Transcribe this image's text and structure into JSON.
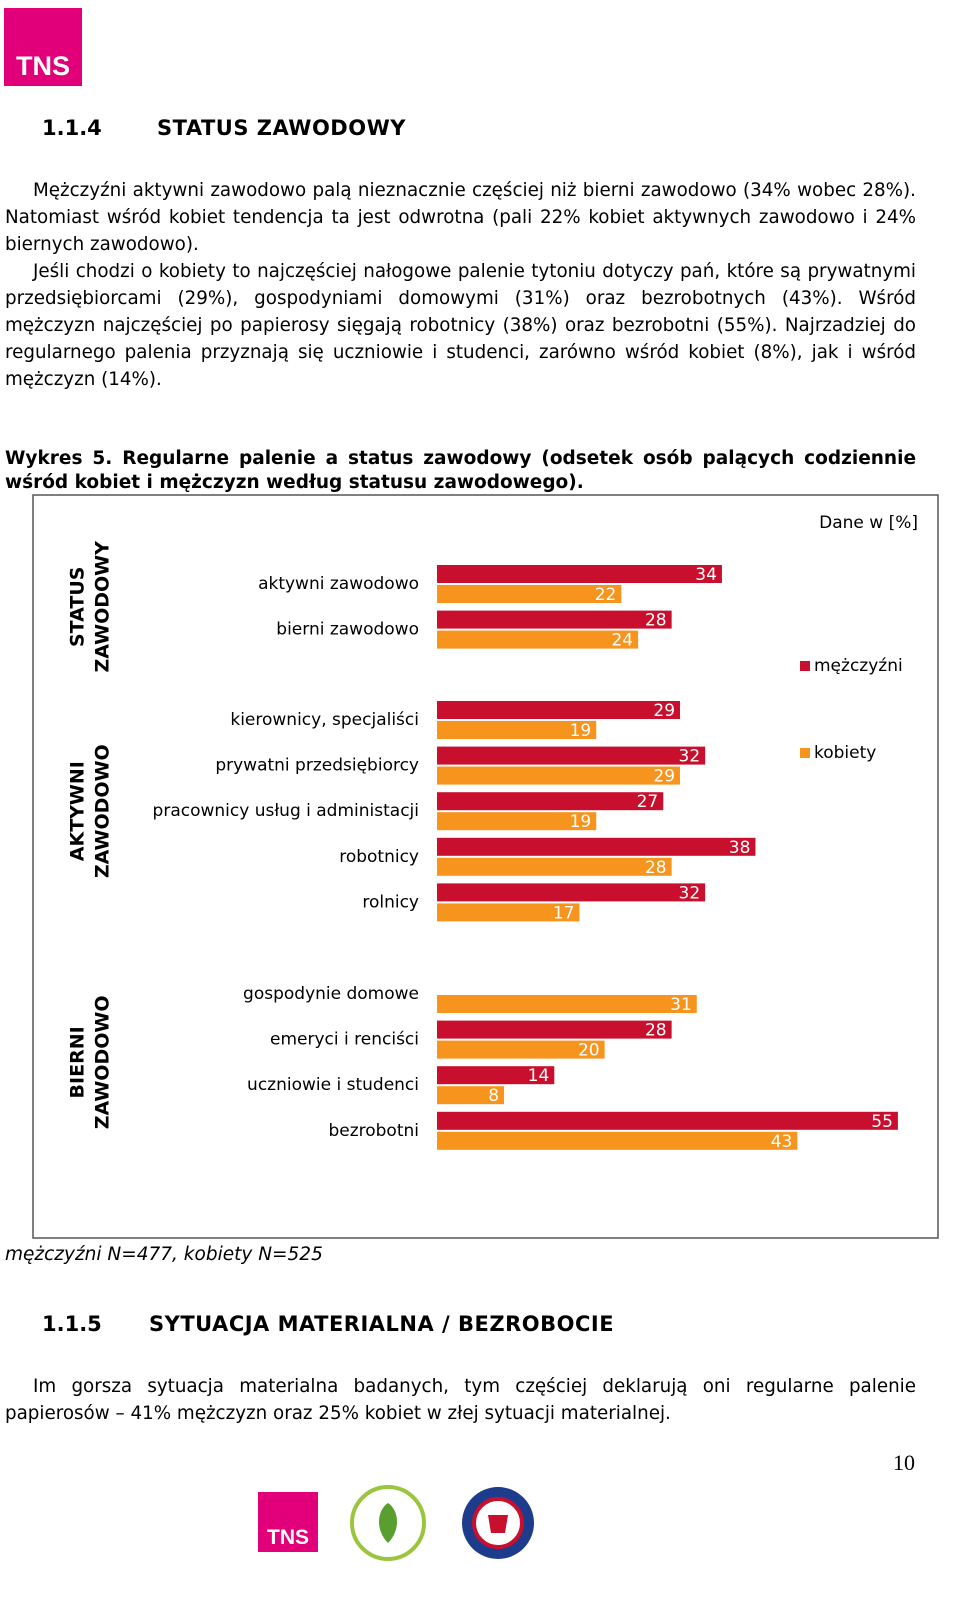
{
  "logo": "TNS",
  "section1": {
    "number": "1.1.4",
    "title": "STATUS ZAWODOWY",
    "paragraphs": [
      "Mężczyźni aktywni zawodowo palą nieznacznie częściej niż bierni zawodowo (34% wobec 28%). Natomiast wśród kobiet tendencja ta jest odwrotna (pali 22% kobiet aktywnych zawodowo i 24% biernych zawodowo).",
      "Jeśli chodzi o kobiety to najczęściej nałogowe palenie tytoniu dotyczy pań, które są prywatnymi przedsiębiorcami (29%), gospodyniami domowymi (31%) oraz bezrobotnych (43%). Wśród mężczyzn najczęściej po papierosy sięgają robotnicy (38%) oraz bezrobotni (55%). Najrzadziej do regularnego palenia przyznają się uczniowie i studenci, zarówno wśród kobiet (8%), jak i wśród mężczyzn (14%)."
    ]
  },
  "caption": "Wykres 5. Regularne palenie a status zawodowy (odsetek osób palących codziennie wśród kobiet i mężczyzn według statusu zawodowego).",
  "chart_data": {
    "type": "bar",
    "orientation": "horizontal",
    "note": "Dane w [%]",
    "groups": [
      {
        "label": [
          "STATUS",
          "ZAWODOWY"
        ],
        "categories": [
          "aktywni zawodowo",
          "bierni zawodowo"
        ]
      },
      {
        "label": [
          "AKTYWNI",
          "ZAWODOWO"
        ],
        "categories": [
          "kierownicy, specjaliści",
          "prywatni przedsiębiorcy",
          "pracownicy usług i administacji",
          "robotnicy",
          "rolnicy"
        ]
      },
      {
        "label": [
          "BIERNI",
          "ZAWODOWO"
        ],
        "categories": [
          "gospodynie domowe",
          "emeryci i renciści",
          "uczniowie i studenci",
          "bezrobotni"
        ]
      }
    ],
    "series": [
      {
        "name": "mężczyźni",
        "color": "#c8102e",
        "values": [
          34,
          28,
          29,
          32,
          27,
          38,
          32,
          null,
          28,
          14,
          55
        ]
      },
      {
        "name": "kobiety",
        "color": "#f7941d",
        "values": [
          22,
          24,
          19,
          29,
          19,
          28,
          17,
          31,
          20,
          8,
          43
        ]
      }
    ]
  },
  "footnote": "mężczyźni N=477, kobiety N=525",
  "section2": {
    "number": "1.1.5",
    "title": "SYTUACJA MATERIALNA / BEZROBOCIE",
    "paragraph": "Im gorsza sytuacja materialna badanych, tym częściej deklarują oni regularne palenie papierosów – 41% mężczyzn oraz 25% kobiet w złej sytuacji materialnej."
  },
  "page_number": "10"
}
